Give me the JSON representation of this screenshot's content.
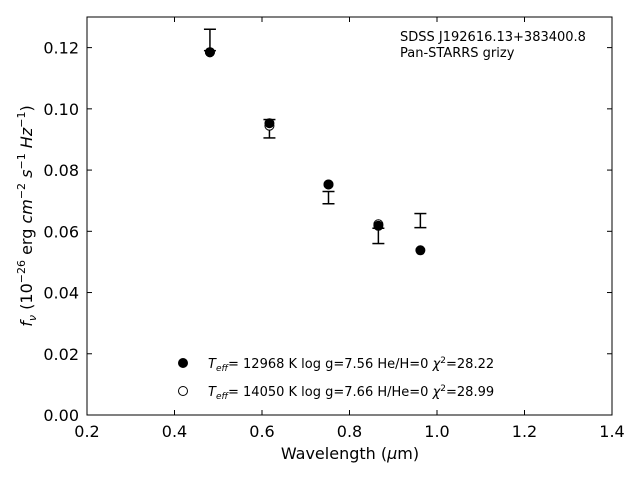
{
  "chart_data": {
    "type": "scatter",
    "xlabel": "Wavelength (μm)",
    "ylabel": "f_ν (10⁻²⁶ erg cm⁻² s⁻¹ Hz⁻¹)",
    "xlim": [
      0.2,
      1.4
    ],
    "ylim": [
      0.0,
      0.13
    ],
    "x_ticks": [
      0.2,
      0.4,
      0.6,
      0.8,
      1.0,
      1.2,
      1.4
    ],
    "x_tick_labels": [
      "0.2",
      "0.4",
      "0.6",
      "0.8",
      "1.0",
      "1.2",
      "1.4"
    ],
    "y_ticks": [
      0.0,
      0.02,
      0.04,
      0.06,
      0.08,
      0.1,
      0.12
    ],
    "y_tick_labels": [
      "0.00",
      "0.02",
      "0.04",
      "0.06",
      "0.08",
      "0.10",
      "0.12"
    ],
    "grid": false,
    "annotations": [
      "SDSS J192616.13+383400.8",
      "Pan-STARRS grizy"
    ],
    "observed": {
      "x": [
        0.481,
        0.617,
        0.752,
        0.866,
        0.962
      ],
      "y": [
        0.1225,
        0.0935,
        0.071,
        0.0585,
        0.0635
      ],
      "yerr": [
        0.0035,
        0.003,
        0.002,
        0.0025,
        0.0023
      ]
    },
    "series": [
      {
        "marker": "filled",
        "label": "T_eff= 12968 K  log g=7.56  He/H=0  χ²=28.22",
        "x": [
          0.481,
          0.617,
          0.752,
          0.866,
          0.962
        ],
        "y": [
          0.1185,
          0.0953,
          0.0753,
          0.0618,
          0.0538
        ]
      },
      {
        "marker": "open",
        "label": "T_eff= 14050 K  log g=7.66  H/He=0  χ²=28.99",
        "x": [
          0.481,
          0.617,
          0.752,
          0.866
        ],
        "y": [
          0.1185,
          0.0945,
          0.0753,
          0.0623
        ]
      }
    ],
    "legend_position": "lower-center"
  }
}
